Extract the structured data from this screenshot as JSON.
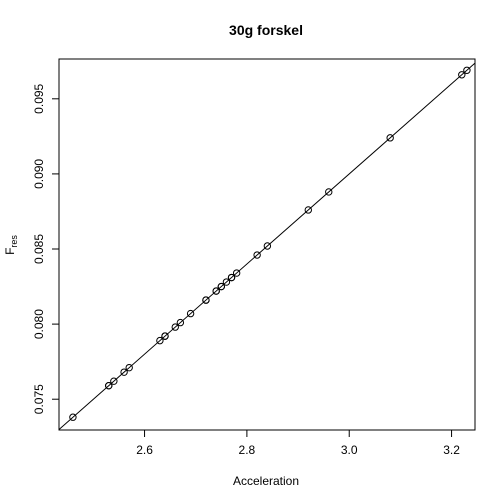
{
  "chart_data": {
    "type": "scatter",
    "title": "30g forskel",
    "xlabel": "Acceleration",
    "ylabel": "F",
    "ylabel_subscript": "res",
    "xlim": [
      2.4328,
      3.2458
    ],
    "ylim": [
      0.07295,
      0.09765
    ],
    "xticks": [
      2.6,
      2.8,
      3.0,
      3.2
    ],
    "xtick_labels": [
      "2.6",
      "2.8",
      "3.0",
      "3.2"
    ],
    "yticks": [
      0.075,
      0.08,
      0.085,
      0.09,
      0.095
    ],
    "ytick_labels": [
      "0.075",
      "0.080",
      "0.085",
      "0.090",
      "0.095"
    ],
    "grid": false,
    "marker": "open-circle",
    "fit_line": {
      "slope": 0.03,
      "intercept": 0.0
    },
    "x": [
      2.46,
      2.53,
      2.53,
      2.54,
      2.56,
      2.57,
      2.63,
      2.64,
      2.64,
      2.66,
      2.67,
      2.69,
      2.72,
      2.72,
      2.74,
      2.74,
      2.75,
      2.75,
      2.76,
      2.77,
      2.77,
      2.78,
      2.82,
      2.84,
      2.92,
      2.96,
      3.08,
      3.22,
      3.23
    ],
    "y": [
      0.0738,
      0.0759,
      0.0759,
      0.0762,
      0.0768,
      0.0771,
      0.0789,
      0.0792,
      0.0792,
      0.0798,
      0.0801,
      0.0807,
      0.0816,
      0.0816,
      0.0822,
      0.0822,
      0.0825,
      0.0825,
      0.0828,
      0.0831,
      0.0831,
      0.0834,
      0.0846,
      0.0852,
      0.0876,
      0.0888,
      0.0924,
      0.0966,
      0.0969
    ]
  }
}
